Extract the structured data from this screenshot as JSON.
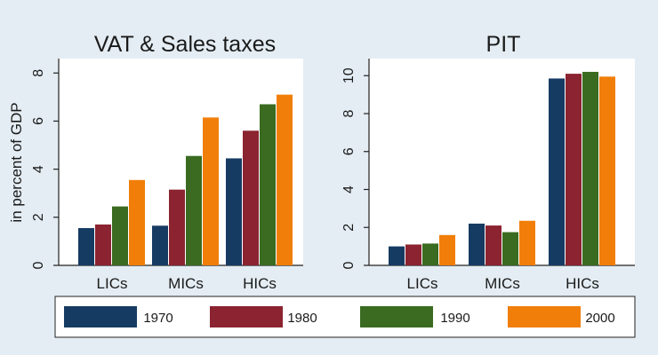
{
  "figure": {
    "background_color": "#e4edf3",
    "plot_background_color": "#ffffff",
    "axis_color": "#222222",
    "legend": {
      "position": "bottom",
      "items": [
        {
          "label": "1970",
          "color": "#163b63"
        },
        {
          "label": "1980",
          "color": "#8b2331"
        },
        {
          "label": "1990",
          "color": "#3a6b20"
        },
        {
          "label": "2000",
          "color": "#f07e09"
        }
      ]
    }
  },
  "chart_data": [
    {
      "type": "bar",
      "title": "VAT & Sales taxes",
      "ylabel": "in percent of GDP",
      "xlabel": "",
      "ylim": [
        0,
        8.6
      ],
      "yticks": [
        0,
        2,
        4,
        6,
        8
      ],
      "grid": false,
      "categories": [
        "LICs",
        "MICs",
        "HICs"
      ],
      "series": [
        {
          "name": "1970",
          "color": "#163b63",
          "values": [
            1.55,
            1.65,
            4.45
          ]
        },
        {
          "name": "1980",
          "color": "#8b2331",
          "values": [
            1.7,
            3.15,
            5.6
          ]
        },
        {
          "name": "1990",
          "color": "#3a6b20",
          "values": [
            2.45,
            4.55,
            6.7
          ]
        },
        {
          "name": "2000",
          "color": "#f07e09",
          "values": [
            3.55,
            6.15,
            7.1
          ]
        }
      ]
    },
    {
      "type": "bar",
      "title": "PIT",
      "ylabel": "",
      "xlabel": "",
      "ylim": [
        0,
        10.9
      ],
      "yticks": [
        0,
        2,
        4,
        6,
        8,
        10
      ],
      "grid": false,
      "categories": [
        "LICs",
        "MICs",
        "HICs"
      ],
      "series": [
        {
          "name": "1970",
          "color": "#163b63",
          "values": [
            1.0,
            2.2,
            9.85
          ]
        },
        {
          "name": "1980",
          "color": "#8b2331",
          "values": [
            1.1,
            2.1,
            10.1
          ]
        },
        {
          "name": "1990",
          "color": "#3a6b20",
          "values": [
            1.15,
            1.75,
            10.2
          ]
        },
        {
          "name": "2000",
          "color": "#f07e09",
          "values": [
            1.6,
            2.35,
            9.95
          ]
        }
      ]
    }
  ]
}
